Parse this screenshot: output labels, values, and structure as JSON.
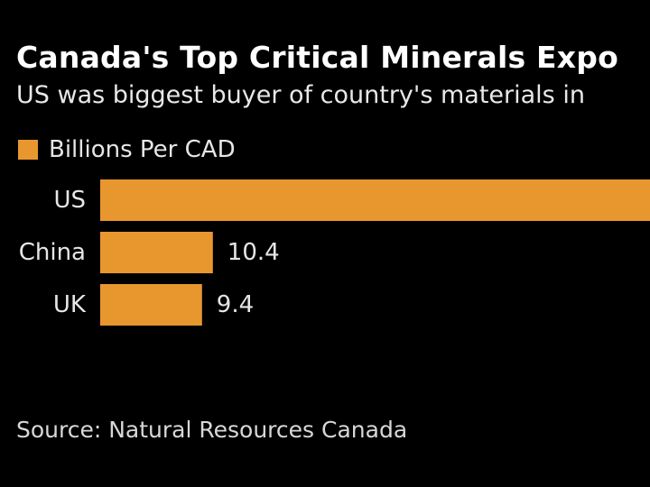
{
  "header": {
    "title": "Canada's Top Critical Minerals Expo",
    "subtitle": "US was biggest buyer of country's materials in"
  },
  "legend": {
    "label": "Billions Per CAD",
    "color": "#e8972f"
  },
  "source": {
    "text": "Source: Natural Resources Canada"
  },
  "chart_data": {
    "type": "bar",
    "orientation": "horizontal",
    "title": "Canada's Top Critical Minerals Expo",
    "subtitle": "US was biggest buyer of country's materials in",
    "legend": [
      "Billions Per CAD"
    ],
    "categories": [
      "US",
      "China",
      "UK"
    ],
    "values": [
      null,
      10.4,
      9.4
    ],
    "value_labels": [
      "",
      "10.4",
      "9.4"
    ],
    "xlim": [
      0,
      52
    ],
    "grid": false,
    "colors": {
      "bar": "#e8972f",
      "background": "#000000",
      "text": "#e6e6e6"
    }
  }
}
